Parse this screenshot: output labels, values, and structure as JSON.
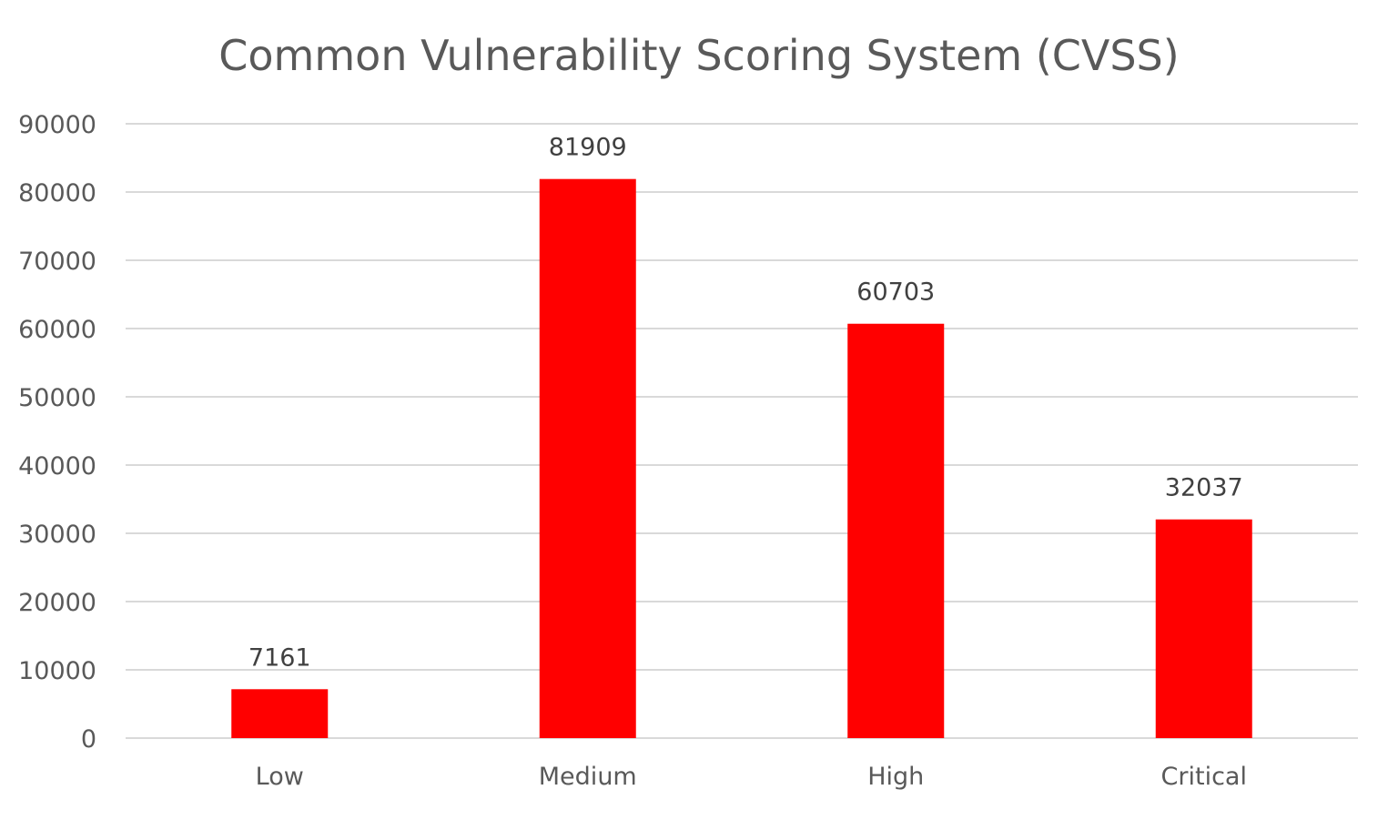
{
  "chart_data": {
    "type": "bar",
    "title": "Common Vulnerability Scoring System (CVSS)",
    "categories": [
      "Low",
      "Medium",
      "High",
      "Critical"
    ],
    "values": [
      7161,
      81909,
      60703,
      32037
    ],
    "data_labels": [
      "7161",
      "81909",
      "60703",
      "32037"
    ],
    "ylim": [
      0,
      90000
    ],
    "yticks": [
      0,
      10000,
      20000,
      30000,
      40000,
      50000,
      60000,
      70000,
      80000,
      90000
    ],
    "ytick_labels": [
      "0",
      "10000",
      "20000",
      "30000",
      "40000",
      "50000",
      "60000",
      "70000",
      "80000",
      "90000"
    ],
    "grid": true,
    "legend": false,
    "bar_color": "#ff0000"
  }
}
